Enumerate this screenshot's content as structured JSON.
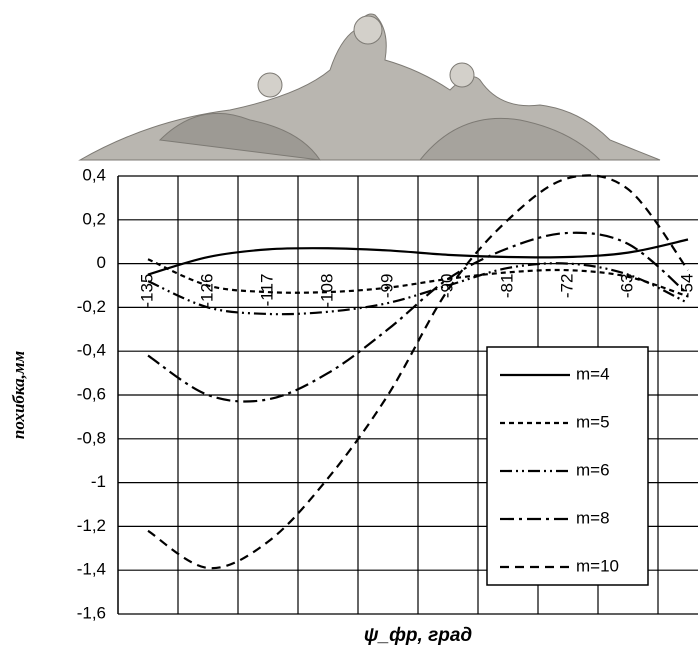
{
  "chart_data": {
    "type": "line",
    "x_label": "ψ_фр, град",
    "y_label": "похибка,мм",
    "categories": [
      "-135",
      "-126",
      "-117",
      "-108",
      "-99",
      "-90",
      "-81",
      "-72",
      "-63",
      "-54"
    ],
    "series": [
      {
        "name": "m=4",
        "color": "#000000",
        "values": [
          -0.05,
          0.03,
          0.065,
          0.07,
          0.06,
          0.04,
          0.03,
          0.03,
          0.05,
          0.11
        ]
      },
      {
        "name": "m=5",
        "color": "#000000",
        "values": [
          0.02,
          -0.1,
          -0.13,
          -0.13,
          -0.11,
          -0.07,
          -0.04,
          -0.03,
          -0.06,
          -0.15
        ]
      },
      {
        "name": "m=6",
        "color": "#000000",
        "values": [
          -0.08,
          -0.2,
          -0.23,
          -0.22,
          -0.18,
          -0.1,
          -0.02,
          0.0,
          -0.05,
          -0.18
        ]
      },
      {
        "name": "m=8",
        "color": "#000000",
        "values": [
          -0.42,
          -0.6,
          -0.62,
          -0.5,
          -0.3,
          -0.07,
          0.07,
          0.14,
          0.09,
          -0.14
        ]
      },
      {
        "name": "m=10",
        "color": "#000000",
        "values": [
          -1.22,
          -1.39,
          -1.27,
          -0.98,
          -0.6,
          -0.12,
          0.2,
          0.39,
          0.34,
          -0.03
        ]
      }
    ],
    "ylim": [
      -1.6,
      0.4
    ],
    "yticks": [
      {
        "value": 0.4,
        "label": "0,4"
      },
      {
        "value": 0.2,
        "label": "0,2"
      },
      0,
      {
        "value": -0.2,
        "label": "-0,2"
      },
      {
        "value": -0.4,
        "label": "-0,4"
      },
      {
        "value": -0.6,
        "label": "-0,6"
      },
      {
        "value": -0.8,
        "label": "-0,8"
      },
      -1,
      {
        "value": -1.2,
        "label": "-1,2"
      },
      {
        "value": -1.4,
        "label": "-1,4"
      },
      {
        "value": -1.6,
        "label": "-1,6"
      }
    ],
    "grid": true
  }
}
